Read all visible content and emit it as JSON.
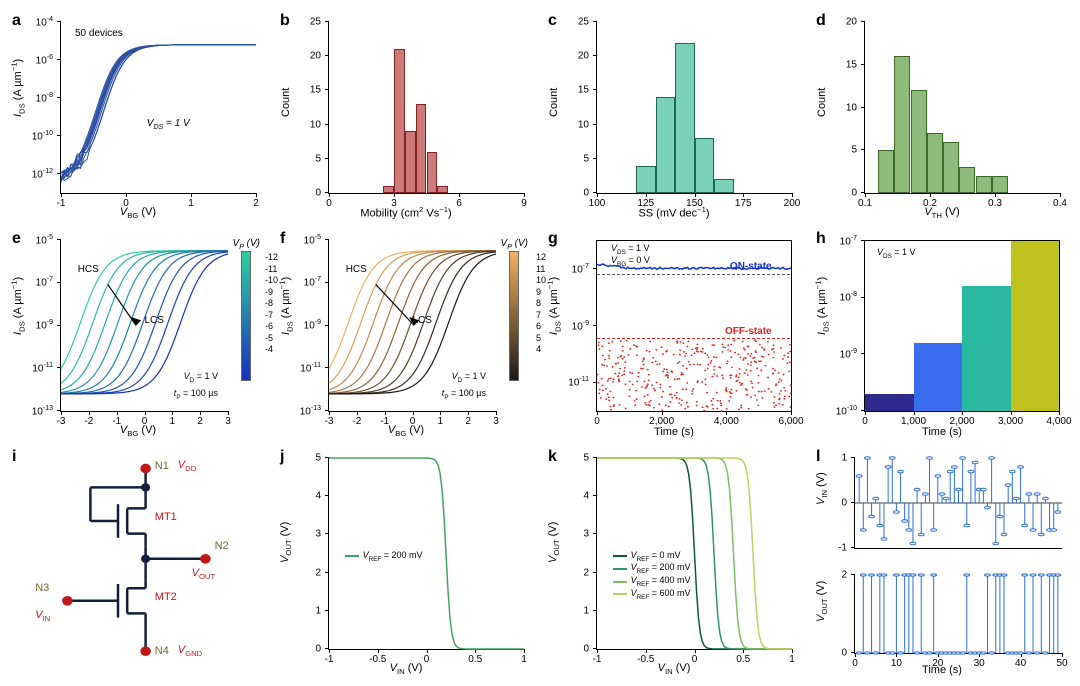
{
  "labels": {
    "a": "a",
    "b": "b",
    "c": "c",
    "d": "d",
    "e": "e",
    "f": "f",
    "g": "g",
    "h": "h",
    "i": "i",
    "j": "j",
    "k": "k",
    "l": "l"
  },
  "colors": {
    "accent_blue": "#2b4fa0",
    "red": "#e02020",
    "on_blue": "#1030d0",
    "bar_pink": "#cc7a7a",
    "bar_teal": "#7ad1b8",
    "bar_green": "#8fbb79",
    "line_outline": "#444"
  },
  "panel_a": {
    "type": "line",
    "xlabel": "V_BG (V)",
    "ylabel": "I_DS (A µm⁻¹)",
    "annot1": "50 devices",
    "annot2": "V_DS = 1 V",
    "xlim": [
      -1,
      2
    ],
    "xticks": [
      -1,
      0,
      1,
      2
    ],
    "ylim_exp": [
      -13,
      -4
    ],
    "yticks_exp": [
      -12,
      -10,
      -8,
      -6,
      -4
    ],
    "n_curves": 50,
    "line_color": "#2b4fa0"
  },
  "panel_b": {
    "type": "histogram",
    "xlabel": "Mobility (cm² Vs⁻¹)",
    "ylabel": "Count",
    "xlim": [
      0,
      9
    ],
    "xticks": [
      0,
      3,
      6,
      9
    ],
    "ylim": [
      0,
      25
    ],
    "yticks": [
      0,
      5,
      10,
      15,
      20,
      25
    ],
    "bar_color": "#cc7a7a",
    "border_color": "#882222",
    "bars": [
      {
        "x": 2.5,
        "w": 0.5,
        "c": 1
      },
      {
        "x": 3.0,
        "w": 0.5,
        "c": 21
      },
      {
        "x": 3.5,
        "w": 0.5,
        "c": 9
      },
      {
        "x": 4.0,
        "w": 0.5,
        "c": 13
      },
      {
        "x": 4.5,
        "w": 0.5,
        "c": 6
      },
      {
        "x": 5.0,
        "w": 0.5,
        "c": 1
      }
    ]
  },
  "panel_c": {
    "type": "histogram",
    "xlabel": "SS (mV dec⁻¹)",
    "ylabel": "Count",
    "xlim": [
      100,
      200
    ],
    "xticks": [
      100,
      125,
      150,
      175,
      200
    ],
    "ylim": [
      0,
      25
    ],
    "yticks": [
      0,
      5,
      10,
      15,
      20,
      25
    ],
    "bar_color": "#7ad1b8",
    "border_color": "#1a6a4f",
    "bars": [
      {
        "x": 120,
        "w": 10,
        "c": 4
      },
      {
        "x": 130,
        "w": 10,
        "c": 14
      },
      {
        "x": 140,
        "w": 10,
        "c": 22
      },
      {
        "x": 150,
        "w": 10,
        "c": 8
      },
      {
        "x": 160,
        "w": 10,
        "c": 2
      }
    ]
  },
  "panel_d": {
    "type": "histogram",
    "xlabel": "V_TH (V)",
    "ylabel": "Count",
    "xlim": [
      0.1,
      0.4
    ],
    "xticks": [
      0.1,
      0.2,
      0.3,
      0.4
    ],
    "ylim": [
      0,
      20
    ],
    "yticks": [
      0,
      5,
      10,
      15,
      20
    ],
    "bar_color": "#8fbb79",
    "border_color": "#3a6a2a",
    "bars": [
      {
        "x": 0.12,
        "w": 0.025,
        "c": 5
      },
      {
        "x": 0.145,
        "w": 0.025,
        "c": 16
      },
      {
        "x": 0.17,
        "w": 0.025,
        "c": 12
      },
      {
        "x": 0.195,
        "w": 0.025,
        "c": 7
      },
      {
        "x": 0.22,
        "w": 0.025,
        "c": 6
      },
      {
        "x": 0.245,
        "w": 0.025,
        "c": 3
      },
      {
        "x": 0.27,
        "w": 0.025,
        "c": 2
      },
      {
        "x": 0.295,
        "w": 0.025,
        "c": 2
      }
    ]
  },
  "panel_e": {
    "type": "line",
    "xlabel": "V_BG (V)",
    "ylabel": "I_DS (A µm⁻¹)",
    "xlim": [
      -3,
      3
    ],
    "xticks": [
      -3,
      -2,
      -1,
      0,
      1,
      2,
      3
    ],
    "ylim_exp": [
      -13,
      -5
    ],
    "yticks_exp": [
      -13,
      -11,
      -9,
      -7,
      -5
    ],
    "annot_hcs": "HCS",
    "annot_lcs": "LCS",
    "annot_vd": "V_D = 1 V",
    "annot_tp": "t_P = 100 µs",
    "legend_title": "V_P (V)",
    "vp_values": [
      -12,
      -11,
      -10,
      -9,
      -8,
      -7,
      -6,
      -5,
      -4
    ],
    "gradient_from": "#2ed0a0",
    "gradient_to": "#1a2fbb"
  },
  "panel_f": {
    "type": "line",
    "xlabel": "V_BG (V)",
    "ylabel": "I_DS (A µm⁻¹)",
    "xlim": [
      -3,
      3
    ],
    "xticks": [
      -3,
      -2,
      -1,
      0,
      1,
      2,
      3
    ],
    "ylim_exp": [
      -13,
      -5
    ],
    "yticks_exp": [
      -13,
      -11,
      -9,
      -7,
      -5
    ],
    "annot_hcs": "HCS",
    "annot_lcs": "LCS",
    "annot_vd": "V_D = 1 V",
    "annot_tp": "t_P = 100 µs",
    "legend_title": "V_P (V)",
    "vp_values": [
      12,
      11,
      10,
      9,
      8,
      7,
      6,
      5,
      4
    ],
    "gradient_from": "#f5b060",
    "gradient_to": "#1a1a1a"
  },
  "panel_g": {
    "type": "line",
    "xlabel": "Time (s)",
    "ylabel": "I_DS (A µm⁻¹)",
    "xlim": [
      0,
      6000
    ],
    "xticks": [
      0,
      2000,
      4000,
      6000
    ],
    "ylim_exp": [
      -12,
      -6
    ],
    "yticks_exp": [
      -11,
      -9,
      -7
    ],
    "annot1": "V_DS = 1 V",
    "annot2": "V_BG = 0 V",
    "on_label": "ON-state",
    "off_label": "OFF-state",
    "on_color": "#1030d0",
    "off_color": "#e02020",
    "on_level": -7,
    "off_noise_top": -9.5
  },
  "panel_h": {
    "type": "step",
    "xlabel": "Time (s)",
    "ylabel": "I_DS (A µm⁻¹)",
    "xlim": [
      0,
      4000
    ],
    "xticks": [
      0,
      1000,
      2000,
      3000,
      4000
    ],
    "ylim_exp": [
      -10,
      -7
    ],
    "yticks_exp": [
      -10,
      -9,
      -8,
      -7
    ],
    "annot1": "V_DS = 1 V",
    "steps": [
      {
        "t0": 0,
        "t1": 1000,
        "lvl": -9.7,
        "color": "#2e2a8c"
      },
      {
        "t0": 1000,
        "t1": 2000,
        "lvl": -8.8,
        "color": "#3a6cf0"
      },
      {
        "t0": 2000,
        "t1": 3000,
        "lvl": -7.8,
        "color": "#2bb8a0"
      },
      {
        "t0": 3000,
        "t1": 4000,
        "lvl": -7.0,
        "color": "#c0c220"
      }
    ]
  },
  "panel_i": {
    "type": "flowchart",
    "nodes": {
      "n1": "N1",
      "n2": "N2",
      "n3": "N3",
      "n4": "N4",
      "vdd": "V_DD",
      "vout": "V_OUT",
      "vin": "V_IN",
      "vgnd": "V_GND",
      "mt1": "MT1",
      "mt2": "MT2"
    },
    "wire_color": "#10203a",
    "label_red": "#c01818",
    "label_olive": "#6a6a30"
  },
  "panel_j": {
    "type": "line",
    "xlabel": "V_IN (V)",
    "ylabel": "V_OUT (V)",
    "xlim": [
      -1,
      1
    ],
    "xticks": [
      -1,
      -0.5,
      0,
      0.5,
      1
    ],
    "ylim": [
      0,
      5
    ],
    "yticks": [
      0,
      1,
      2,
      3,
      4,
      5
    ],
    "legend": [
      "V_REF = 200 mV"
    ],
    "line_color": "#3fa65f",
    "transition_at": 0.2
  },
  "panel_k": {
    "type": "line",
    "xlabel": "V_IN (V)",
    "ylabel": "V_OUT (V)",
    "xlim": [
      -1,
      1
    ],
    "xticks": [
      -1,
      -0.5,
      0,
      0.5,
      1
    ],
    "ylim": [
      0,
      5
    ],
    "yticks": [
      0,
      1,
      2,
      3,
      4,
      5
    ],
    "legend": [
      "V_REF = 0 mV",
      "V_REF = 200 mV",
      "V_REF = 400 mV",
      "V_REF = 600 mV"
    ],
    "series": [
      {
        "color": "#0a5a40",
        "transition_at": 0.0
      },
      {
        "color": "#2a9a60",
        "transition_at": 0.2
      },
      {
        "color": "#7ac060",
        "transition_at": 0.4
      },
      {
        "color": "#c0d060",
        "transition_at": 0.6
      }
    ]
  },
  "panel_l": {
    "type": "stem",
    "xlabel": "Time (s)",
    "xlim": [
      0,
      50
    ],
    "xticks": [
      0,
      10,
      20,
      30,
      40,
      50
    ],
    "top": {
      "ylabel": "V_IN (V)",
      "ylim": [
        -1,
        1
      ],
      "yticks": [
        -1,
        0,
        1
      ],
      "color": "#2b6fd0",
      "samples": [
        0.6,
        -0.6,
        1,
        -0.3,
        0.1,
        -0.5,
        -0.8,
        0.8,
        1,
        -0.2,
        0.7,
        -0.4,
        -0.6,
        -0.9,
        0.3,
        -0.7,
        0.2,
        1,
        -0.6,
        0.6,
        0.2,
        0.1,
        0.7,
        0.8,
        0.3,
        1,
        -0.5,
        0.7,
        0.9,
        0.3,
        0.3,
        -0.1,
        1,
        -0.9,
        -0.3,
        -0.7,
        0.4,
        0.7,
        0.1,
        0.8,
        -0.5,
        0.2,
        -0.6,
        0.2,
        -0.7,
        0.1,
        -0.6,
        -0.6,
        -0.2
      ]
    },
    "bottom": {
      "ylabel": "V_OUT (V)",
      "ylim": [
        0,
        2
      ],
      "yticks": [
        0,
        2
      ],
      "color": "#2b6fd0",
      "samples": [
        0,
        2,
        0,
        2,
        0,
        2,
        2,
        0,
        0,
        2,
        0,
        2,
        2,
        2,
        0,
        2,
        0,
        0,
        2,
        0,
        0,
        0,
        0,
        0,
        0,
        0,
        2,
        0,
        0,
        0,
        0,
        2,
        0,
        2,
        2,
        2,
        0,
        0,
        0,
        0,
        2,
        0,
        2,
        0,
        2,
        0,
        2,
        2,
        2
      ]
    }
  }
}
